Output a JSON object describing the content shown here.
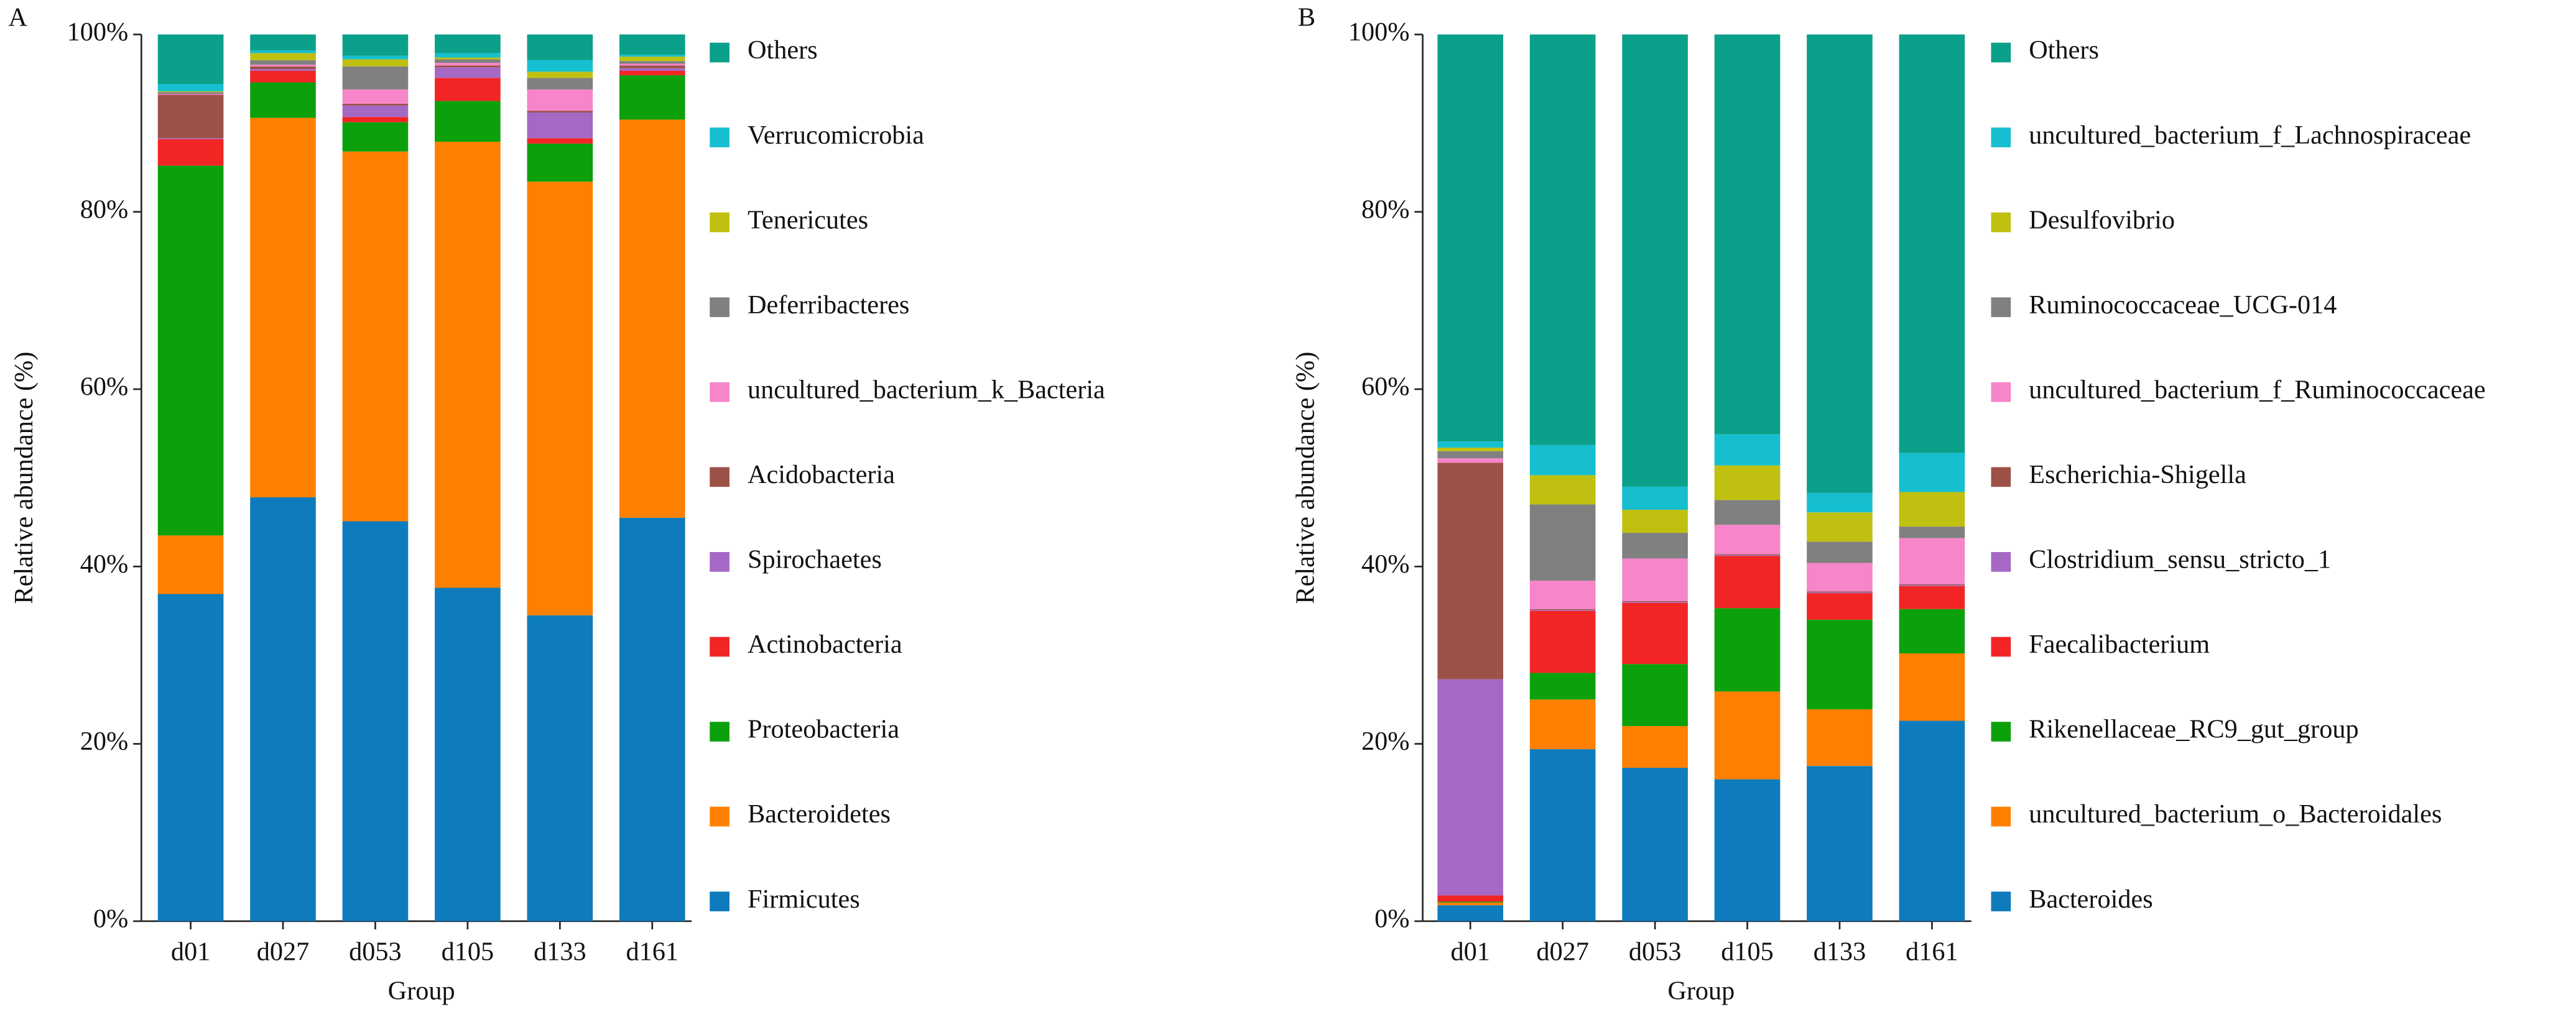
{
  "chart_data": [
    {
      "type": "stacked-bar",
      "label": "A",
      "ylabel": "Relative abundance (%)",
      "xlabel": "Group",
      "categories": [
        "d01",
        "d027",
        "d053",
        "d105",
        "d133",
        "d161"
      ],
      "ylim": [
        0,
        100
      ],
      "yticks": [
        {
          "value": 0,
          "label": "0%"
        },
        {
          "value": 20,
          "label": "20%"
        },
        {
          "value": 40,
          "label": "40%"
        },
        {
          "value": 60,
          "label": "60%"
        },
        {
          "value": 80,
          "label": "80%"
        },
        {
          "value": 100,
          "label": "100%"
        }
      ],
      "series": [
        {
          "name": "Firmicutes",
          "color": "#0e7bbd",
          "values": [
            36.9,
            47.8,
            45.1,
            37.6,
            34.5,
            45.5
          ]
        },
        {
          "name": "Bacteroidetes",
          "color": "#ff8000",
          "values": [
            6.6,
            42.8,
            41.7,
            50.3,
            48.9,
            44.9
          ]
        },
        {
          "name": "Proteobacteria",
          "color": "#0ca10c",
          "values": [
            41.7,
            4.0,
            3.3,
            4.6,
            4.3,
            5.0
          ]
        },
        {
          "name": "Actinobacteria",
          "color": "#f22525",
          "values": [
            3.0,
            1.3,
            0.6,
            2.6,
            0.6,
            0.5
          ]
        },
        {
          "name": "Spirochaetes",
          "color": "#a569c5",
          "values": [
            0.1,
            0.2,
            1.3,
            1.2,
            2.9,
            0.3
          ]
        },
        {
          "name": "Acidobacteria",
          "color": "#9c5247",
          "values": [
            4.9,
            0.3,
            0.2,
            0.2,
            0.2,
            0.3
          ]
        },
        {
          "name": "uncultured_bacterium_k_Bacteria",
          "color": "#f785c9",
          "values": [
            0.1,
            0.2,
            1.6,
            0.3,
            2.4,
            0.2
          ]
        },
        {
          "name": "Deferribacteres",
          "color": "#808080",
          "values": [
            0.2,
            0.5,
            2.6,
            0.4,
            1.3,
            0.3
          ]
        },
        {
          "name": "Tenericutes",
          "color": "#c0c011",
          "values": [
            0.1,
            0.8,
            0.8,
            0.2,
            0.7,
            0.5
          ]
        },
        {
          "name": "Verrucomicrobia",
          "color": "#16bfd0",
          "values": [
            0.8,
            0.3,
            0.4,
            0.5,
            1.3,
            0.2
          ]
        },
        {
          "name": "Others",
          "color": "#0ba089",
          "values": [
            5.6,
            1.8,
            2.4,
            2.1,
            2.9,
            2.3
          ]
        }
      ]
    },
    {
      "type": "stacked-bar",
      "label": "B",
      "ylabel": "Relative abundance (%)",
      "xlabel": "Group",
      "categories": [
        "d01",
        "d027",
        "d053",
        "d105",
        "d133",
        "d161"
      ],
      "ylim": [
        0,
        100
      ],
      "yticks": [
        {
          "value": 0,
          "label": "0%"
        },
        {
          "value": 20,
          "label": "20%"
        },
        {
          "value": 40,
          "label": "40%"
        },
        {
          "value": 60,
          "label": "60%"
        },
        {
          "value": 80,
          "label": "80%"
        },
        {
          "value": 100,
          "label": "100%"
        }
      ],
      "series": [
        {
          "name": "Bacteroides",
          "color": "#0e7bbd",
          "values": [
            1.8,
            19.4,
            17.3,
            16.0,
            17.5,
            22.6
          ]
        },
        {
          "name": "uncultured_bacterium_o_Bacteroidales",
          "color": "#ff8000",
          "values": [
            0.3,
            5.6,
            4.7,
            9.9,
            6.4,
            7.6
          ]
        },
        {
          "name": "Rikenellaceae_RC9_gut_group",
          "color": "#0ca10c",
          "values": [
            0.1,
            3.0,
            7.0,
            9.4,
            10.1,
            5.0
          ]
        },
        {
          "name": "Faecalibacterium",
          "color": "#f22525",
          "values": [
            0.7,
            7.0,
            6.9,
            5.9,
            3.0,
            2.6
          ]
        },
        {
          "name": "Clostridium_sensu_stricto_1",
          "color": "#a569c5",
          "values": [
            24.4,
            0.1,
            0.1,
            0.1,
            0.1,
            0.1
          ]
        },
        {
          "name": "Escherichia-Shigella",
          "color": "#9c5247",
          "values": [
            24.4,
            0.1,
            0.1,
            0.1,
            0.1,
            0.1
          ]
        },
        {
          "name": "uncultured_bacterium_f_Ruminococcaceae",
          "color": "#f785c9",
          "values": [
            0.5,
            3.2,
            4.8,
            3.3,
            3.2,
            5.2
          ]
        },
        {
          "name": "Ruminococcaceae_UCG-014",
          "color": "#808080",
          "values": [
            0.8,
            8.6,
            2.9,
            2.8,
            2.4,
            1.3
          ]
        },
        {
          "name": "Desulfovibrio",
          "color": "#c0c011",
          "values": [
            0.4,
            3.3,
            2.6,
            3.9,
            3.3,
            3.9
          ]
        },
        {
          "name": "uncultured_bacterium_f_Lachnospiraceae",
          "color": "#16bfd0",
          "values": [
            0.7,
            3.4,
            2.6,
            3.5,
            2.2,
            4.4
          ]
        },
        {
          "name": "Others",
          "color": "#0ba089",
          "values": [
            45.9,
            46.3,
            51.0,
            45.1,
            51.7,
            47.2
          ]
        }
      ]
    }
  ]
}
